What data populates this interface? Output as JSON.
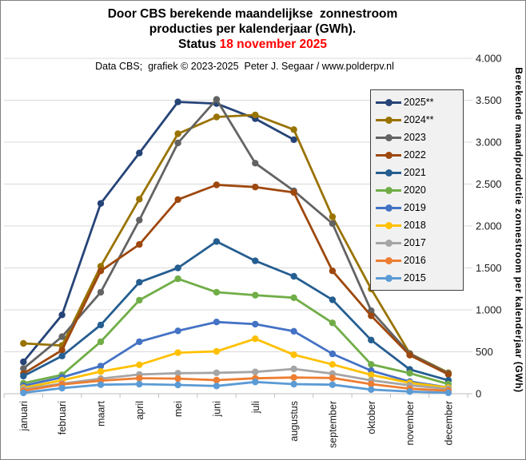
{
  "window": {
    "background": "#FFFFFF",
    "border_color": "#808080"
  },
  "title": {
    "line1": "Door CBS berekende maandelijkse  zonnestroom",
    "line2": "producties per kalenderjaar (GWh).",
    "status_label": "Status ",
    "status_value": "18 november 2025",
    "status_color": "#FF0000"
  },
  "subtitle": "Data CBS;  grafiek © 2023-2025  Peter J. Segaar / www.polderpv.nl",
  "chart_data": {
    "type": "line",
    "title": "Door CBS berekende maandelijkse zonnestroom producties per kalenderjaar (GWh). Status 18 november 2025",
    "xlabel": "",
    "ylabel": "Berekende maandproductie zonnestroom per kalenderjaar (GWh)",
    "ylim": [
      0,
      4000
    ],
    "ytick_step": 500,
    "ytick_labels": [
      "0",
      "500",
      "1.000",
      "1.500",
      "2.000",
      "2.500",
      "3.000",
      "3.500",
      "4.000"
    ],
    "grid": true,
    "legend_position": "top-right",
    "gridline_color": "#D9D9D9",
    "axisline_color": "#BFBFBF",
    "categories": [
      "januari",
      "februari",
      "maart",
      "april",
      "mei",
      "juni",
      "juli",
      "augustus",
      "september",
      "oktober",
      "november",
      "december"
    ],
    "series": [
      {
        "name": "2025**",
        "color": "#264478",
        "values": [
          380,
          940,
          2270,
          2870,
          3480,
          3460,
          3280,
          3030,
          null,
          null,
          null,
          null
        ]
      },
      {
        "name": "2024**",
        "color": "#997300",
        "values": [
          600,
          575,
          1520,
          2320,
          3100,
          3300,
          3325,
          3150,
          2110,
          1250,
          480,
          250
        ]
      },
      {
        "name": "2023",
        "color": "#636363",
        "values": [
          300,
          680,
          1210,
          2070,
          2990,
          3510,
          2750,
          2420,
          2030,
          990,
          475,
          240
        ]
      },
      {
        "name": "2022",
        "color": "#9E480E",
        "values": [
          240,
          520,
          1465,
          1780,
          2315,
          2490,
          2465,
          2400,
          1465,
          930,
          460,
          230
        ]
      },
      {
        "name": "2021",
        "color": "#255E91",
        "values": [
          210,
          450,
          820,
          1330,
          1500,
          1815,
          1585,
          1400,
          1120,
          640,
          290,
          160
        ]
      },
      {
        "name": "2020",
        "color": "#70AD47",
        "values": [
          125,
          225,
          620,
          1115,
          1370,
          1210,
          1175,
          1145,
          845,
          350,
          245,
          115
        ]
      },
      {
        "name": "2019",
        "color": "#4472C4",
        "values": [
          95,
          195,
          330,
          620,
          750,
          855,
          830,
          745,
          475,
          275,
          145,
          75
        ]
      },
      {
        "name": "2018",
        "color": "#FFC000",
        "values": [
          70,
          160,
          265,
          345,
          490,
          505,
          655,
          465,
          350,
          225,
          130,
          73
        ]
      },
      {
        "name": "2017",
        "color": "#A5A5A5",
        "values": [
          55,
          120,
          180,
          230,
          245,
          250,
          260,
          295,
          240,
          160,
          100,
          57
        ]
      },
      {
        "name": "2016",
        "color": "#ED7D31",
        "values": [
          35,
          110,
          155,
          185,
          180,
          162,
          184,
          193,
          188,
          114,
          60,
          35
        ]
      },
      {
        "name": "2015",
        "color": "#5B9BD5",
        "values": [
          10,
          67,
          108,
          114,
          105,
          92,
          140,
          114,
          108,
          50,
          26,
          10
        ]
      }
    ]
  }
}
